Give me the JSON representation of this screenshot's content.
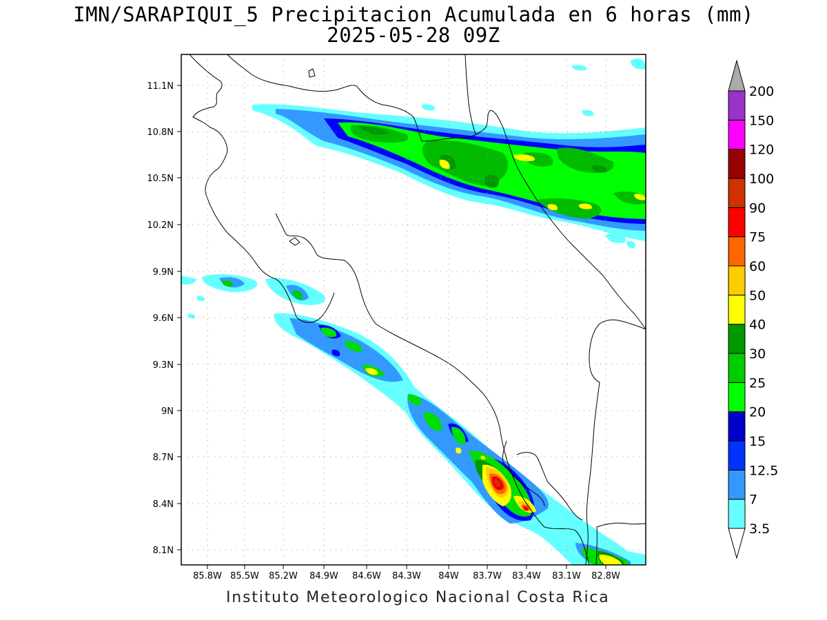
{
  "title_line1": "IMN/SARAPIQUI_5 Precipitacion Acumulada en 6 horas (mm)",
  "title_line2": "2025-05-28 09Z",
  "footer": "Instituto Meteorologico Nacional Costa Rica",
  "map": {
    "lon_range": [
      -86.0,
      -82.6
    ],
    "lat_range": [
      8.0,
      11.3
    ],
    "lon_ticks": [
      "85.8W",
      "85.5W",
      "85.2W",
      "84.9W",
      "84.6W",
      "84.3W",
      "84W",
      "83.7W",
      "83.4W",
      "83.1W",
      "82.8W"
    ],
    "lat_ticks": [
      "11.1N",
      "10.8N",
      "10.5N",
      "10.2N",
      "9.9N",
      "9.6N",
      "9.3N",
      "9N",
      "8.7N",
      "8.4N",
      "8.1N"
    ],
    "grid": "dotted"
  },
  "colorbar": {
    "labels": [
      "3.5",
      "7",
      "12.5",
      "15",
      "20",
      "25",
      "30",
      "40",
      "50",
      "60",
      "75",
      "90",
      "100",
      "120",
      "150",
      "200"
    ],
    "colors": [
      "#66ffff",
      "#3399ff",
      "#0033ff",
      "#0000cc",
      "#00ff00",
      "#00cc00",
      "#009900",
      "#ffff00",
      "#ffcc00",
      "#ff6600",
      "#ff0000",
      "#cc3300",
      "#990000",
      "#ff00ff",
      "#9933cc",
      "#f2f2f2",
      "#aaaaaa"
    ]
  }
}
